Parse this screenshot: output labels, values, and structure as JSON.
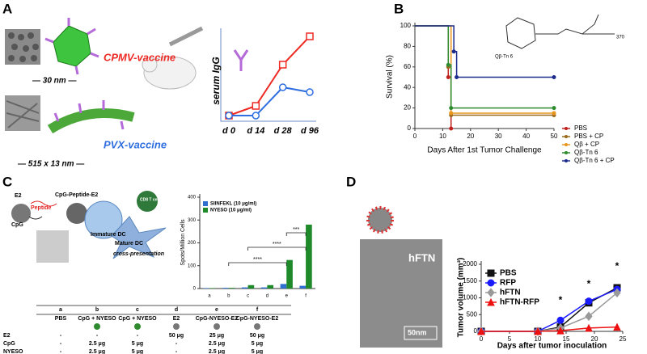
{
  "chart_data": [
    {
      "type": "line",
      "panel": "A",
      "ylabel": "serum IgG",
      "categories": [
        "d 0",
        "d 14",
        "d 28",
        "d 96"
      ],
      "ylim": [
        0,
        100
      ],
      "series": [
        {
          "name": "CPMV-vaccine",
          "color": "#ee2a24",
          "marker": "square",
          "values": [
            2,
            14,
            65,
            100
          ]
        },
        {
          "name": "PVX-vaccine",
          "color": "#2f6fe0",
          "marker": "circle",
          "values": [
            2,
            2,
            37,
            31
          ]
        }
      ],
      "annotations": [
        "— 30 nm —",
        "— 515 x 13 nm —"
      ]
    },
    {
      "type": "step",
      "panel": "B",
      "xlabel": "Days After 1st Tumor Challenge",
      "ylabel": "Survival (%)",
      "xlim": [
        0,
        50
      ],
      "xticks": [
        0,
        10,
        20,
        30,
        40,
        50
      ],
      "ylim": [
        0,
        100
      ],
      "yticks": [
        0,
        20,
        40,
        60,
        80,
        100
      ],
      "series": [
        {
          "name": "PBS",
          "color": "#c0201e",
          "x": [
            0,
            12,
            13
          ],
          "values": [
            100,
            50,
            0
          ]
        },
        {
          "name": "PBS + CP",
          "color": "#9a6a1c",
          "x": [
            0,
            12,
            13,
            50
          ],
          "values": [
            100,
            60,
            13,
            13
          ]
        },
        {
          "name": "Qβ + CP",
          "color": "#e8961e",
          "x": [
            0,
            13,
            50
          ],
          "values": [
            100,
            15,
            15
          ]
        },
        {
          "name": "Qβ-Tn 6",
          "color": "#2e8b2e",
          "x": [
            0,
            12,
            13,
            50
          ],
          "values": [
            100,
            62,
            20,
            20
          ]
        },
        {
          "name": "Qβ-Tn 6 + CP",
          "color": "#1c2c8c",
          "x": [
            0,
            14,
            15,
            50
          ],
          "values": [
            100,
            75,
            50,
            50
          ]
        }
      ],
      "annotations": [
        "Qβ-Tn 6",
        "370"
      ]
    },
    {
      "type": "bar",
      "panel": "C",
      "ylabel": "Spots/Million Cells",
      "categories": [
        "a",
        "b",
        "c",
        "d",
        "e",
        "f"
      ],
      "ylim": [
        0,
        400
      ],
      "yticks": [
        0,
        100,
        200,
        300,
        400
      ],
      "series": [
        {
          "name": "SIINFEKL (10 μg/ml)",
          "color": "#2f6fd0",
          "values": [
            2,
            3,
            5,
            5,
            20,
            12
          ]
        },
        {
          "name": "NYESO (10 μg/ml)",
          "color": "#1f8a2a",
          "values": [
            2,
            3,
            15,
            15,
            125,
            280
          ]
        }
      ],
      "annotations": [
        "****",
        "****",
        "***"
      ]
    },
    {
      "type": "line",
      "panel": "D",
      "xlabel": "Days after tumor inoculation",
      "ylabel": "Tumor volume (mm³)",
      "xlim": [
        0,
        25
      ],
      "xticks": [
        0,
        5,
        10,
        15,
        20,
        25
      ],
      "ylim": [
        0,
        2000
      ],
      "yticks": [
        0,
        500,
        1000,
        1500,
        2000
      ],
      "series": [
        {
          "name": "PBS",
          "color": "#111111",
          "marker": "square",
          "x": [
            0,
            10,
            14,
            19,
            24
          ],
          "values": [
            0,
            0,
            130,
            850,
            1300
          ]
        },
        {
          "name": "RFP",
          "color": "#1a1aff",
          "marker": "circle",
          "x": [
            0,
            10,
            14,
            19,
            24
          ],
          "values": [
            0,
            0,
            330,
            900,
            1250
          ]
        },
        {
          "name": "hFTN",
          "color": "#999999",
          "marker": "diamond",
          "x": [
            0,
            10,
            14,
            19,
            24
          ],
          "values": [
            0,
            0,
            100,
            450,
            1150
          ]
        },
        {
          "name": "hFTN-RFP",
          "color": "#ee1111",
          "marker": "triangle",
          "x": [
            0,
            10,
            14,
            19,
            24
          ],
          "values": [
            0,
            0,
            20,
            100,
            130
          ]
        }
      ],
      "annotations": [
        "*",
        "*",
        "*"
      ],
      "image_labels": [
        "hFTN",
        "50nm"
      ]
    }
  ],
  "diagram": {
    "labels": [
      "E2",
      "Peptide",
      "CpG",
      "CpG-Peptide-E2",
      "Immature DC",
      "CD8 T cell",
      "Mature DC",
      "cross-presentation"
    ]
  },
  "table": {
    "columns": [
      "a",
      "b",
      "c",
      "d",
      "e",
      "f"
    ],
    "names": [
      "PBS",
      "CpG + NYESO",
      "CpG + NYESO",
      "E2",
      "CpG-NYESO-E2",
      "CpG-NYESO-E2"
    ],
    "rows": [
      [
        "E2",
        "-",
        "-",
        "-",
        "50 μg",
        "25 μg",
        "50 μg"
      ],
      [
        "CpG",
        "-",
        "2.5 μg",
        "5 μg",
        "-",
        "2.5 μg",
        "5 μg"
      ],
      [
        "NYESO",
        "-",
        "2.5 μg",
        "5 μg",
        "-",
        "2.5 μg",
        "5 μg"
      ]
    ]
  }
}
